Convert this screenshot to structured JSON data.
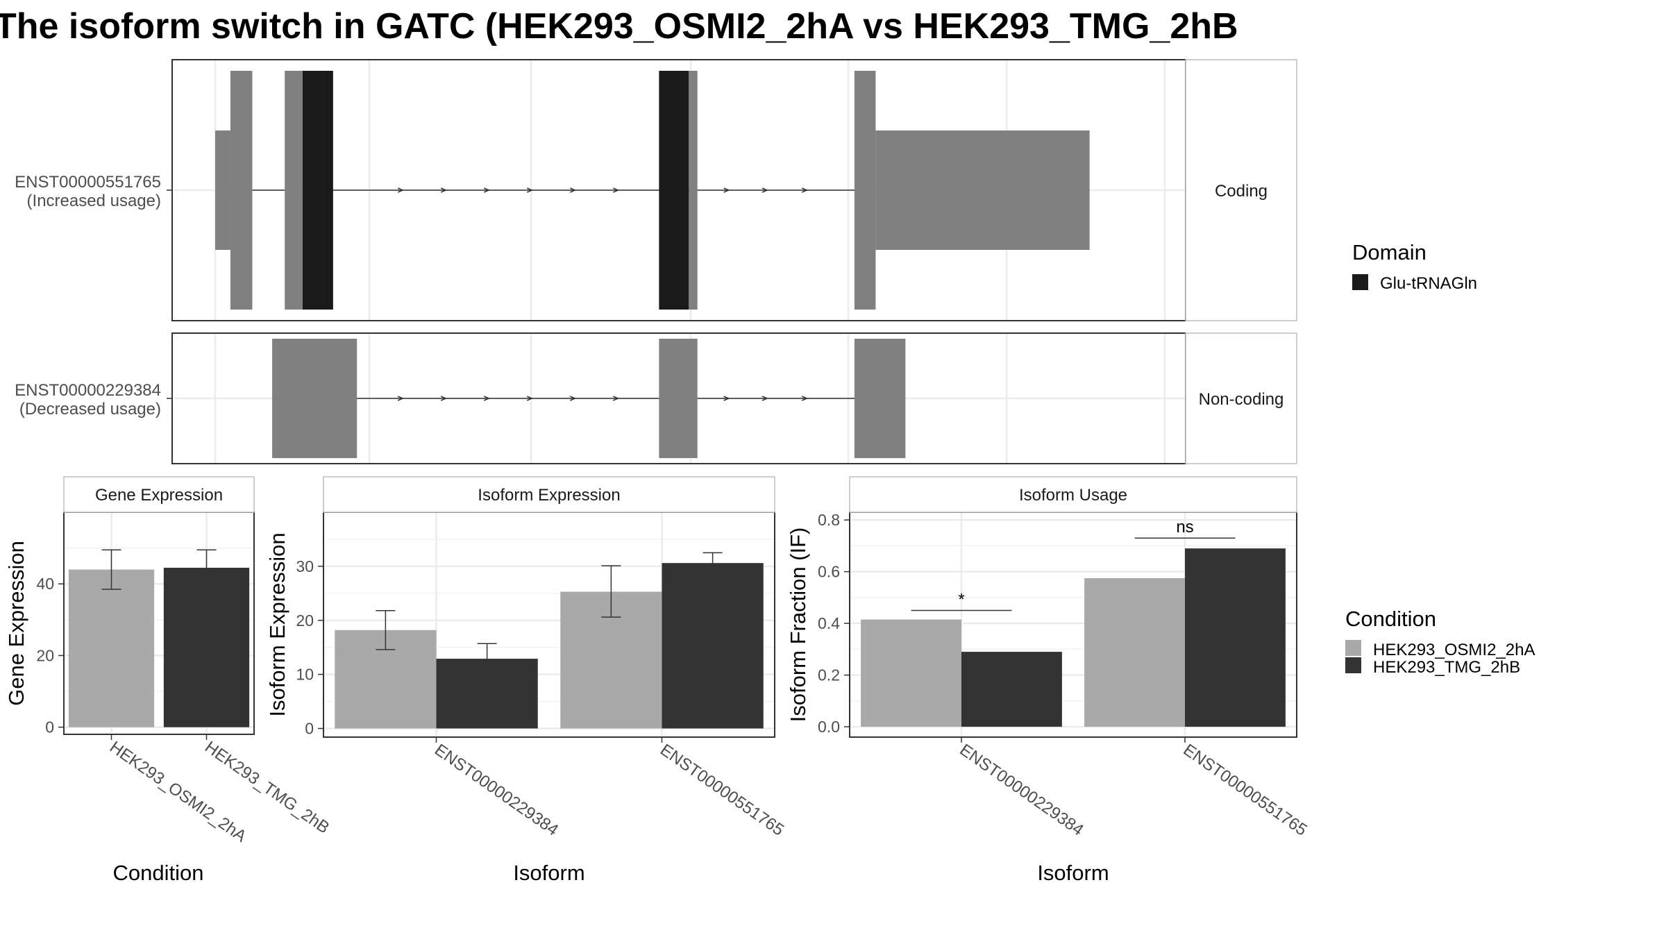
{
  "title": "The isoform switch in GATC (HEK293_OSMI2_2hA vs HEK293_TMG_2hB",
  "colors": {
    "exon": "#808080",
    "domain": "#1a1a1a",
    "condition_a": "#a9a9a9",
    "condition_b": "#333333",
    "grid": "#ebebeb",
    "strip_border": "#bdbdbd"
  },
  "transcripts": [
    {
      "id": "ENST00000551765",
      "usage": "(Increased usage)",
      "facet": "Coding",
      "exons": [
        {
          "start": 0,
          "end": 23,
          "height": "utr"
        },
        {
          "start": 23,
          "end": 56,
          "height": "cds"
        },
        {
          "start": 105,
          "end": 132,
          "height": "cds"
        },
        {
          "start": 132,
          "end": 178,
          "height": "cds",
          "domain": true
        },
        {
          "start": 670,
          "end": 715,
          "height": "cds",
          "domain": true
        },
        {
          "start": 715,
          "end": 728,
          "height": "cds"
        },
        {
          "start": 965,
          "end": 997,
          "height": "cds"
        },
        {
          "start": 997,
          "end": 1320,
          "height": "utr"
        }
      ],
      "intron_arrows": [
        280,
        345,
        410,
        475,
        540,
        605,
        772,
        830,
        890
      ]
    },
    {
      "id": "ENST00000229384",
      "usage": "(Decreased usage)",
      "facet": "Non-coding",
      "exons": [
        {
          "start": 86,
          "end": 214,
          "height": "nc"
        },
        {
          "start": 670,
          "end": 728,
          "height": "nc"
        },
        {
          "start": 965,
          "end": 1042,
          "height": "nc"
        }
      ],
      "intron_arrows": [
        280,
        345,
        410,
        475,
        540,
        605,
        772,
        830,
        890
      ]
    }
  ],
  "legend_domain": {
    "title": "Domain",
    "items": [
      {
        "label": "Glu-tRNAGln",
        "color": "#1a1a1a"
      }
    ]
  },
  "legend_condition": {
    "title": "Condition",
    "items": [
      {
        "label": "HEK293_OSMI2_2hA",
        "color": "#a9a9a9"
      },
      {
        "label": "HEK293_TMG_2hB",
        "color": "#333333"
      }
    ]
  },
  "chart_data": [
    {
      "type": "bar",
      "title": "Gene Expression",
      "xlabel": "Condition",
      "ylabel": "Gene Expression",
      "categories": [
        "HEK293_OSMI2_2hA",
        "HEK293_TMG_2hB"
      ],
      "values": [
        44,
        44.5
      ],
      "error": [
        [
          38.5,
          49.5
        ],
        [
          40,
          49.5
        ]
      ],
      "ylim": [
        -2,
        60
      ],
      "yticks": [
        0,
        20,
        40
      ]
    },
    {
      "type": "bar",
      "title": "Isoform Expression",
      "xlabel": "Isoform",
      "ylabel": "Isoform Expression",
      "categories": [
        "ENST00000229384",
        "ENST00000551765"
      ],
      "series": [
        {
          "name": "HEK293_OSMI2_2hA",
          "values": [
            18.2,
            25.3
          ],
          "error": [
            [
              14.6,
              21.8
            ],
            [
              20.6,
              30.1
            ]
          ]
        },
        {
          "name": "HEK293_TMG_2hB",
          "values": [
            12.9,
            30.6
          ],
          "error": [
            [
              10.2,
              15.7
            ],
            [
              28.8,
              32.5
            ]
          ]
        }
      ],
      "ylim": [
        -1.6,
        40
      ],
      "yticks": [
        0,
        10,
        20,
        30
      ]
    },
    {
      "type": "bar",
      "title": "Isoform Usage",
      "xlabel": "Isoform",
      "ylabel": "Isoform Fraction (IF)",
      "categories": [
        "ENST00000229384",
        "ENST00000551765"
      ],
      "series": [
        {
          "name": "HEK293_OSMI2_2hA",
          "values": [
            0.415,
            0.575
          ]
        },
        {
          "name": "HEK293_TMG_2hB",
          "values": [
            0.29,
            0.69
          ]
        }
      ],
      "significance": [
        "*",
        "ns"
      ],
      "significance_y": [
        0.45,
        0.73
      ],
      "ylim": [
        -0.04,
        0.83
      ],
      "yticks": [
        "0.0",
        "0.2",
        "0.4",
        "0.6",
        "0.8"
      ]
    }
  ]
}
